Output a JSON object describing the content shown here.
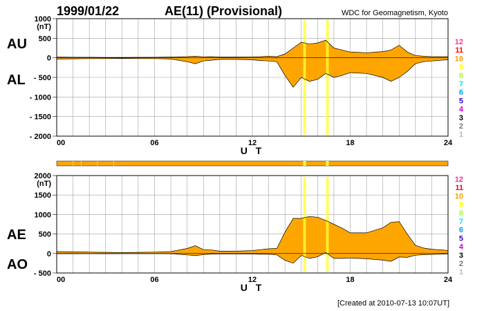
{
  "header": {
    "date": "1999/01/22",
    "title": "AE(11) (Provisional)",
    "source": "WDC for Geomagnetism, Kyoto"
  },
  "footer": {
    "created": "[Created at 2010-07-13 10:07UT]"
  },
  "colors": {
    "fill": "#ffa500",
    "highlight": "#ffff33",
    "grid": "#a0a0a0",
    "outline": "#000000"
  },
  "legend": {
    "items": [
      {
        "label": "12",
        "color": "#ff3399"
      },
      {
        "label": "11",
        "color": "#ff0000"
      },
      {
        "label": "10",
        "color": "#ff9900"
      },
      {
        "label": "9",
        "color": "#ffff00"
      },
      {
        "label": "8",
        "color": "#99ff33"
      },
      {
        "label": "7",
        "color": "#00e5ff"
      },
      {
        "label": "6",
        "color": "#0099ff"
      },
      {
        "label": "5",
        "color": "#3300cc"
      },
      {
        "label": "4",
        "color": "#cc00cc"
      },
      {
        "label": "3",
        "color": "#000000"
      },
      {
        "label": "2",
        "color": "#777777"
      },
      {
        "label": "1",
        "color": "#bbbbbb"
      }
    ]
  },
  "chart_data": [
    {
      "type": "area",
      "labels": {
        "upper": "AU",
        "lower": "AL",
        "unit": "(nT)",
        "xlabel": "U T"
      },
      "x_ticks": [
        0,
        6,
        12,
        18,
        24
      ],
      "x_tick_labels": [
        "00",
        "06",
        "12",
        "18",
        "24"
      ],
      "xlim": [
        0,
        24
      ],
      "ylim": [
        -2000,
        1000
      ],
      "y_ticks": [
        1000,
        500,
        0,
        -500,
        -1000,
        -1500,
        -2000
      ],
      "y_tick_labels": [
        "1000",
        "500",
        "0",
        "- 500",
        "- 1000",
        "- 1500",
        "- 2000"
      ],
      "grid": true,
      "x": [
        0,
        1,
        2,
        3,
        4,
        5,
        6,
        7,
        8,
        8.5,
        9,
        9.5,
        10,
        11,
        12,
        12.5,
        13,
        13.5,
        14,
        14.5,
        15,
        15.5,
        16,
        16.5,
        17,
        17.5,
        18,
        19,
        20,
        20.5,
        21,
        21.5,
        22,
        22.5,
        23,
        24
      ],
      "series": [
        {
          "name": "AU",
          "values": [
            20,
            15,
            15,
            10,
            10,
            12,
            15,
            20,
            30,
            40,
            25,
            30,
            20,
            20,
            25,
            30,
            40,
            30,
            100,
            250,
            400,
            350,
            380,
            450,
            250,
            200,
            150,
            130,
            160,
            200,
            320,
            150,
            60,
            40,
            30,
            30
          ]
        },
        {
          "name": "AL",
          "values": [
            -30,
            -25,
            -20,
            -20,
            -15,
            -20,
            -20,
            -30,
            -100,
            -150,
            -80,
            -60,
            -40,
            -40,
            -50,
            -70,
            -80,
            -100,
            -450,
            -750,
            -500,
            -600,
            -550,
            -400,
            -500,
            -450,
            -380,
            -400,
            -500,
            -600,
            -500,
            -350,
            -150,
            -100,
            -80,
            -50
          ]
        }
      ],
      "highlight_hours": [
        15.2,
        16.6
      ]
    },
    {
      "type": "area",
      "labels": {
        "upper": "AE",
        "lower": "AO",
        "unit": "(nT)",
        "xlabel": "U T"
      },
      "x_ticks": [
        0,
        6,
        12,
        18,
        24
      ],
      "x_tick_labels": [
        "00",
        "06",
        "12",
        "18",
        "24"
      ],
      "xlim": [
        0,
        24
      ],
      "ylim": [
        -500,
        2000
      ],
      "y_ticks": [
        2000,
        1500,
        1000,
        500,
        0,
        -500
      ],
      "y_tick_labels": [
        "2000",
        "1500",
        "1000",
        "500",
        "0",
        "- 500"
      ],
      "grid": true,
      "x": [
        0,
        1,
        2,
        3,
        4,
        5,
        6,
        7,
        8,
        8.5,
        9,
        9.5,
        10,
        11,
        12,
        12.5,
        13,
        13.5,
        14,
        14.5,
        15,
        15.5,
        16,
        16.5,
        17,
        17.5,
        18,
        19,
        20,
        20.5,
        21,
        21.5,
        22,
        22.5,
        23,
        24
      ],
      "series": [
        {
          "name": "AE",
          "values": [
            50,
            40,
            35,
            30,
            25,
            30,
            35,
            50,
            130,
            200,
            100,
            90,
            60,
            60,
            75,
            100,
            120,
            130,
            550,
            900,
            900,
            950,
            930,
            850,
            750,
            650,
            530,
            530,
            660,
            800,
            820,
            500,
            210,
            140,
            110,
            80
          ]
        },
        {
          "name": "AO",
          "values": [
            -5,
            -5,
            -3,
            -5,
            -3,
            -4,
            -3,
            -5,
            -35,
            -55,
            -28,
            -15,
            -10,
            -10,
            -13,
            -20,
            -20,
            -35,
            -175,
            -250,
            -50,
            -125,
            -85,
            25,
            -125,
            -125,
            -115,
            -135,
            -170,
            -200,
            -90,
            -100,
            -45,
            -30,
            -25,
            -10
          ]
        }
      ],
      "highlight_hours": [
        15.2,
        16.6
      ]
    }
  ]
}
